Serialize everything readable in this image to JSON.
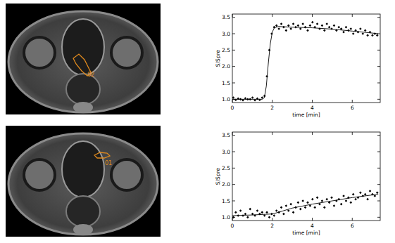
{
  "chart_data": [
    {
      "type": "scatter",
      "y_label": "S/Spre",
      "x_label": "time [min]",
      "xlim": [
        0,
        7.4
      ],
      "ylim": [
        0.9,
        3.6
      ],
      "xticks": [
        0,
        2,
        4,
        6
      ],
      "yticks": [
        {
          "value": 1.0,
          "label": "1.0"
        },
        {
          "value": 1.5,
          "label": "1.5"
        },
        {
          "value": 2.0,
          "label": "2.0"
        },
        {
          "value": 2.5,
          "label": "2.5"
        },
        {
          "value": 3.0,
          "label": "3.0"
        },
        {
          "value": 3.5,
          "label": "3.5"
        }
      ],
      "series": [
        {
          "type": "scatter",
          "marker": "diamond",
          "color": "#000000",
          "x": [
            0.05,
            0.17,
            0.29,
            0.41,
            0.53,
            0.65,
            0.77,
            0.89,
            1.01,
            1.13,
            1.25,
            1.37,
            1.49,
            1.61,
            1.73,
            1.85,
            1.97,
            2.09,
            2.21,
            2.33,
            2.45,
            2.57,
            2.69,
            2.81,
            2.93,
            3.05,
            3.17,
            3.29,
            3.41,
            3.53,
            3.65,
            3.77,
            3.89,
            4.01,
            4.13,
            4.25,
            4.37,
            4.49,
            4.61,
            4.73,
            4.85,
            4.97,
            5.09,
            5.21,
            5.33,
            5.45,
            5.57,
            5.69,
            5.81,
            5.93,
            6.05,
            6.17,
            6.29,
            6.41,
            6.53,
            6.65,
            6.77,
            6.89,
            7.01,
            7.13,
            7.25
          ],
          "values": [
            1.05,
            0.98,
            1.02,
            1.0,
            0.97,
            1.03,
            1.0,
            1.0,
            1.05,
            0.97,
            1.02,
            0.98,
            1.05,
            1.1,
            1.7,
            2.5,
            3.0,
            3.2,
            3.25,
            3.15,
            3.3,
            3.2,
            3.1,
            3.25,
            3.15,
            3.3,
            3.2,
            3.25,
            3.15,
            3.3,
            3.2,
            3.1,
            3.25,
            3.35,
            3.2,
            3.3,
            3.15,
            3.25,
            3.1,
            3.3,
            3.2,
            3.15,
            3.25,
            3.1,
            3.2,
            3.15,
            3.05,
            3.2,
            3.1,
            3.15,
            3.0,
            3.1,
            3.05,
            3.15,
            3.0,
            3.1,
            2.95,
            3.05,
            2.95,
            3.0,
            2.95
          ]
        },
        {
          "type": "line",
          "line_style": "solid",
          "color": "#000000",
          "x": [
            0,
            1.5,
            1.6,
            1.7,
            1.8,
            1.9,
            2.0,
            2.1,
            2.3,
            3,
            4,
            5,
            6,
            7,
            7.3
          ],
          "values": [
            1.0,
            1.0,
            1.05,
            1.4,
            2.1,
            2.7,
            3.05,
            3.18,
            3.22,
            3.2,
            3.18,
            3.14,
            3.08,
            3.02,
            3.0
          ]
        }
      ]
    },
    {
      "type": "scatter",
      "y_label": "S/Spre",
      "x_label": "time [min]",
      "xlim": [
        0,
        7.4
      ],
      "ylim": [
        0.9,
        3.6
      ],
      "xticks": [
        0,
        2,
        4,
        6
      ],
      "yticks": [
        {
          "value": 1.0,
          "label": "1.0"
        },
        {
          "value": 1.5,
          "label": "1.5"
        },
        {
          "value": 2.0,
          "label": "2.0"
        },
        {
          "value": 2.5,
          "label": "2.5"
        },
        {
          "value": 3.0,
          "label": "3.0"
        },
        {
          "value": 3.5,
          "label": "3.5"
        }
      ],
      "series": [
        {
          "type": "scatter",
          "marker": "diamond",
          "color": "#000000",
          "x": [
            0.05,
            0.17,
            0.29,
            0.41,
            0.53,
            0.65,
            0.77,
            0.89,
            1.01,
            1.13,
            1.25,
            1.37,
            1.49,
            1.61,
            1.73,
            1.85,
            1.97,
            2.09,
            2.21,
            2.33,
            2.45,
            2.57,
            2.69,
            2.81,
            2.93,
            3.05,
            3.17,
            3.29,
            3.41,
            3.53,
            3.65,
            3.77,
            3.89,
            4.01,
            4.13,
            4.25,
            4.37,
            4.49,
            4.61,
            4.73,
            4.85,
            4.97,
            5.09,
            5.21,
            5.33,
            5.45,
            5.57,
            5.69,
            5.81,
            5.93,
            6.05,
            6.17,
            6.29,
            6.41,
            6.53,
            6.65,
            6.77,
            6.89,
            7.01,
            7.13,
            7.25
          ],
          "values": [
            1.0,
            1.15,
            1.05,
            1.2,
            1.05,
            1.1,
            1.0,
            1.25,
            1.1,
            1.05,
            1.2,
            1.1,
            1.15,
            1.05,
            1.15,
            1.0,
            1.1,
            1.05,
            1.2,
            1.15,
            1.3,
            1.1,
            1.35,
            1.2,
            1.4,
            1.15,
            1.3,
            1.45,
            1.25,
            1.5,
            1.3,
            1.45,
            1.35,
            1.55,
            1.3,
            1.6,
            1.4,
            1.5,
            1.3,
            1.55,
            1.45,
            1.6,
            1.35,
            1.5,
            1.55,
            1.4,
            1.65,
            1.5,
            1.6,
            1.45,
            1.7,
            1.55,
            1.6,
            1.75,
            1.65,
            1.7,
            1.55,
            1.8,
            1.7,
            1.65,
            1.75
          ]
        },
        {
          "type": "line",
          "line_style": "solid",
          "color": "#000000",
          "x": [
            0,
            1,
            2,
            2.3,
            3,
            4,
            5,
            6,
            7,
            7.3
          ],
          "values": [
            1.05,
            1.07,
            1.1,
            1.15,
            1.28,
            1.4,
            1.5,
            1.6,
            1.68,
            1.7
          ]
        }
      ]
    }
  ],
  "images": [
    {
      "roi_label": "02"
    },
    {
      "roi_label": "01"
    }
  ]
}
